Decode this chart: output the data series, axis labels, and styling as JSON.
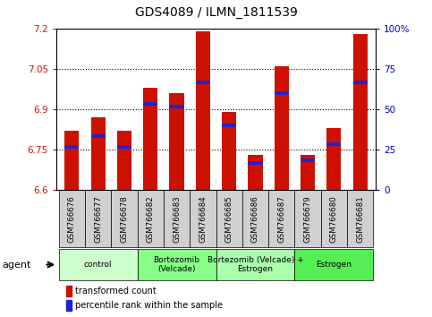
{
  "title": "GDS4089 / ILMN_1811539",
  "samples": [
    "GSM766676",
    "GSM766677",
    "GSM766678",
    "GSM766682",
    "GSM766683",
    "GSM766684",
    "GSM766685",
    "GSM766686",
    "GSM766687",
    "GSM766679",
    "GSM766680",
    "GSM766681"
  ],
  "bar_values": [
    6.82,
    6.87,
    6.82,
    6.98,
    6.96,
    7.19,
    6.89,
    6.73,
    7.06,
    6.73,
    6.83,
    7.18
  ],
  "blue_positions": [
    6.76,
    6.8,
    6.76,
    6.92,
    6.91,
    7.0,
    6.84,
    6.7,
    6.96,
    6.71,
    6.77,
    7.0
  ],
  "ymin": 6.6,
  "ymax": 7.2,
  "yticks": [
    6.6,
    6.75,
    6.9,
    7.05,
    7.2
  ],
  "ytick_labels": [
    "6.6",
    "6.75",
    "6.9",
    "7.05",
    "7.2"
  ],
  "right_yticks": [
    0,
    25,
    50,
    75,
    100
  ],
  "right_ytick_labels": [
    "0",
    "25",
    "50",
    "75",
    "100%"
  ],
  "bar_color": "#CC1100",
  "blue_color": "#2222CC",
  "groups": [
    {
      "label": "control",
      "start": 0,
      "end": 3,
      "color": "#CCFFCC"
    },
    {
      "label": "Bortezomib\n(Velcade)",
      "start": 3,
      "end": 6,
      "color": "#88FF88"
    },
    {
      "label": "Bortezomib (Velcade) +\nEstrogen",
      "start": 6,
      "end": 9,
      "color": "#AAFFAA"
    },
    {
      "label": "Estrogen",
      "start": 9,
      "end": 12,
      "color": "#55EE55"
    }
  ],
  "agent_label": "agent",
  "legend_red": "transformed count",
  "legend_blue": "percentile rank within the sample",
  "fig_width": 4.83,
  "fig_height": 3.54,
  "dpi": 100
}
